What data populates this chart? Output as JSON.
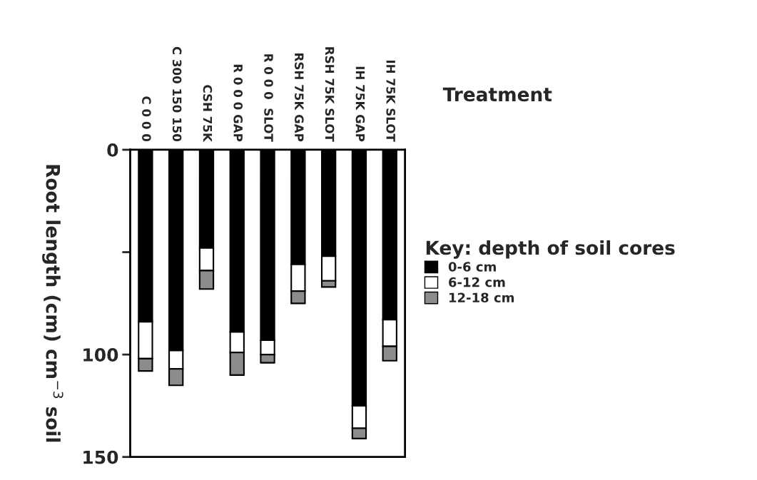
{
  "chart_data": {
    "type": "bar",
    "stacked": true,
    "title": "Treatment",
    "ylabel": "Root length (cm) cm$^{−3}$ soil",
    "legend_title": "Key: depth of soil cores",
    "legend": "right",
    "categories": [
      "C 0 0 0",
      "C 300 150 150",
      "CSH 75K",
      "R 0 0 0 GAP",
      "R 0 0 0  SLOT",
      "RSH 75K GAP",
      "RSH 75K SLOT",
      "IH 75K GAP",
      "IH 75K SLOT"
    ],
    "ylim": [
      150,
      0
    ],
    "yticks": [
      0,
      {
        "value": 50,
        "label": null
      },
      100,
      150
    ],
    "grid": false,
    "series": [
      {
        "name": "0-6 cm",
        "color": "#000000",
        "values": [
          84,
          98,
          48,
          89,
          93,
          56,
          52,
          125,
          83
        ]
      },
      {
        "name": "6-12 cm",
        "color": "#ffffff",
        "values": [
          18,
          9,
          11,
          10,
          7,
          13,
          12,
          11,
          13
        ]
      },
      {
        "name": "12-18 cm",
        "color": "#8c8c8c",
        "values": [
          6,
          8,
          9,
          11,
          4,
          6,
          3,
          5,
          7
        ]
      }
    ]
  }
}
